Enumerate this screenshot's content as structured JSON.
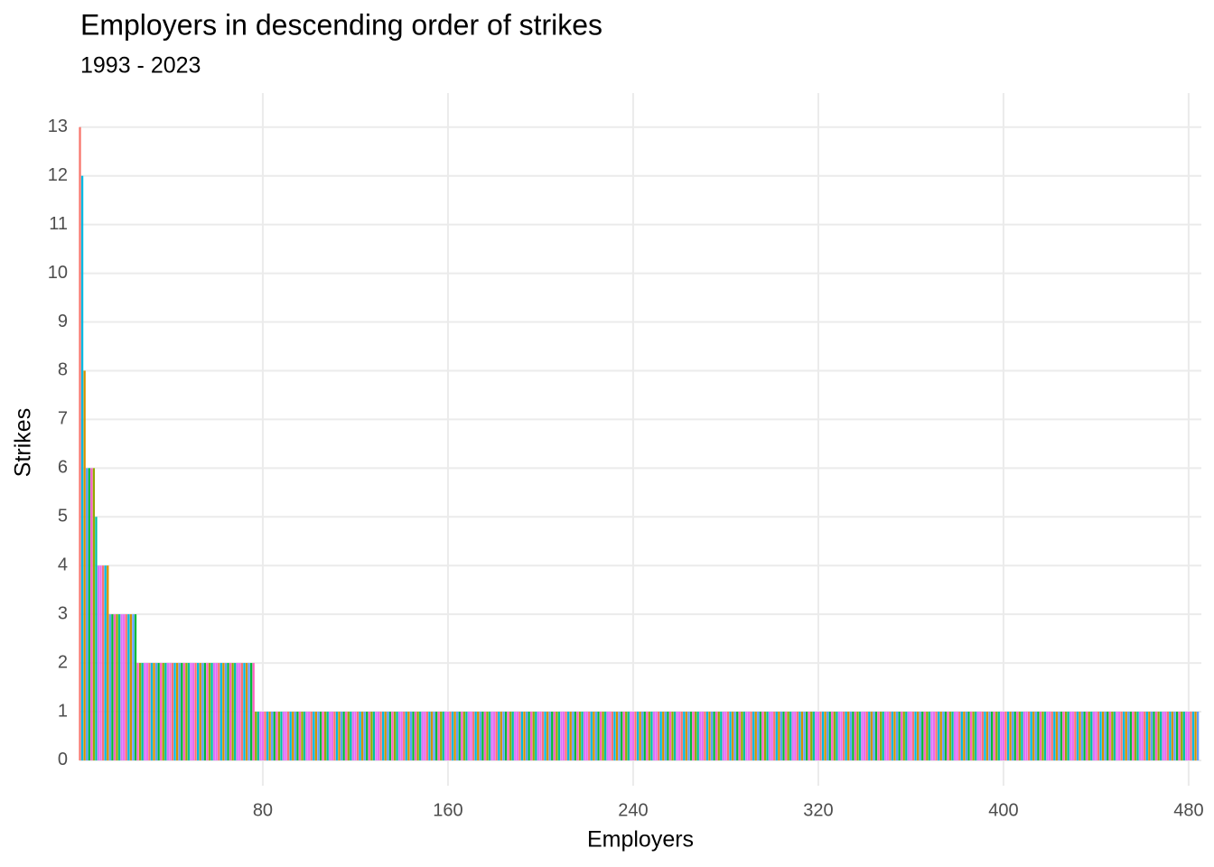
{
  "chart_data": {
    "type": "bar",
    "title": "Employers in descending order of strikes",
    "subtitle": "1993 - 2023",
    "x_label": "Employers",
    "y_label": "Strikes",
    "x": [
      1,
      2,
      3,
      4,
      5,
      6,
      7,
      8,
      9,
      10,
      11,
      12,
      13,
      14,
      15,
      16,
      17,
      18,
      19,
      20,
      21,
      22,
      23,
      24,
      25,
      26,
      27,
      28,
      29,
      30,
      31,
      32,
      33,
      34,
      35,
      36,
      37,
      38,
      39,
      40,
      41,
      42,
      43,
      44,
      45,
      46,
      47,
      48,
      49,
      50,
      51,
      52,
      53,
      54,
      55,
      56,
      57,
      58,
      59,
      60,
      61,
      62,
      63,
      64,
      65,
      66,
      67,
      68,
      69,
      70,
      71,
      72,
      73,
      74,
      75,
      76,
      77,
      78,
      79,
      80,
      81,
      82,
      83,
      84,
      85,
      86,
      87,
      88,
      89,
      90,
      91,
      92,
      93,
      94,
      95,
      96,
      97,
      98,
      99,
      100,
      101,
      102,
      103,
      104,
      105,
      106,
      107,
      108,
      109,
      110,
      111,
      112,
      113,
      114,
      115,
      116,
      117,
      118,
      119,
      120,
      121,
      122,
      123,
      124,
      125,
      126,
      127,
      128,
      129,
      130,
      131,
      132,
      133,
      134,
      135,
      136,
      137,
      138,
      139,
      140,
      141,
      142,
      143,
      144,
      145,
      146,
      147,
      148,
      149,
      150,
      151,
      152,
      153,
      154,
      155,
      156,
      157,
      158,
      159,
      160,
      161,
      162,
      163,
      164,
      165,
      166,
      167,
      168,
      169,
      170,
      171,
      172,
      173,
      174,
      175,
      176,
      177,
      178,
      179,
      180,
      181,
      182,
      183,
      184,
      185,
      186,
      187,
      188,
      189,
      190,
      191,
      192,
      193,
      194,
      195,
      196,
      197,
      198,
      199,
      200,
      201,
      202,
      203,
      204,
      205,
      206,
      207,
      208,
      209,
      210,
      211,
      212,
      213,
      214,
      215,
      216,
      217,
      218,
      219,
      220,
      221,
      222,
      223,
      224,
      225,
      226,
      227,
      228,
      229,
      230,
      231,
      232,
      233,
      234,
      235,
      236,
      237,
      238,
      239,
      240,
      241,
      242,
      243,
      244,
      245,
      246,
      247,
      248,
      249,
      250,
      251,
      252,
      253,
      254,
      255,
      256,
      257,
      258,
      259,
      260,
      261,
      262,
      263,
      264,
      265,
      266,
      267,
      268,
      269,
      270,
      271,
      272,
      273,
      274,
      275,
      276,
      277,
      278,
      279,
      280,
      281,
      282,
      283,
      284,
      285,
      286,
      287,
      288,
      289,
      290,
      291,
      292,
      293,
      294,
      295,
      296,
      297,
      298,
      299,
      300,
      301,
      302,
      303,
      304,
      305,
      306,
      307,
      308,
      309,
      310,
      311,
      312,
      313,
      314,
      315,
      316,
      317,
      318,
      319,
      320,
      321,
      322,
      323,
      324,
      325,
      326,
      327,
      328,
      329,
      330,
      331,
      332,
      333,
      334,
      335,
      336,
      337,
      338,
      339,
      340,
      341,
      342,
      343,
      344,
      345,
      346,
      347,
      348,
      349,
      350,
      351,
      352,
      353,
      354,
      355,
      356,
      357,
      358,
      359,
      360,
      361,
      362,
      363,
      364,
      365,
      366,
      367,
      368,
      369,
      370,
      371,
      372,
      373,
      374,
      375,
      376,
      377,
      378,
      379,
      380,
      381,
      382,
      383,
      384,
      385,
      386,
      387,
      388,
      389,
      390,
      391,
      392,
      393,
      394,
      395,
      396,
      397,
      398,
      399,
      400,
      401,
      402,
      403,
      404,
      405,
      406,
      407,
      408,
      409,
      410,
      411,
      412,
      413,
      414,
      415,
      416,
      417,
      418,
      419,
      420,
      421,
      422,
      423,
      424,
      425,
      426,
      427,
      428,
      429,
      430,
      431,
      432,
      433,
      434,
      435,
      436,
      437,
      438,
      439,
      440,
      441,
      442,
      443,
      444,
      445,
      446,
      447,
      448,
      449,
      450,
      451,
      452,
      453,
      454,
      455,
      456,
      457,
      458,
      459,
      460,
      461,
      462,
      463,
      464,
      465,
      466,
      467,
      468,
      469,
      470,
      471,
      472,
      473,
      474,
      475,
      476,
      477,
      478,
      479,
      480,
      481,
      482,
      483,
      484
    ],
    "values": [
      13,
      12,
      8,
      6,
      6,
      6,
      6,
      5,
      4,
      4,
      4,
      4,
      4,
      3,
      3,
      3,
      3,
      3,
      3,
      3,
      3,
      3,
      3,
      3,
      3,
      2,
      2,
      2,
      2,
      2,
      2,
      2,
      2,
      2,
      2,
      2,
      2,
      2,
      2,
      2,
      2,
      2,
      2,
      2,
      2,
      2,
      2,
      2,
      2,
      2,
      2,
      2,
      2,
      2,
      2,
      2,
      2,
      2,
      2,
      2,
      2,
      2,
      2,
      2,
      2,
      2,
      2,
      2,
      2,
      2,
      2,
      2,
      2,
      2,
      2,
      2,
      1,
      1,
      1,
      1,
      1,
      1,
      1,
      1,
      1,
      1,
      1,
      1,
      1,
      1,
      1,
      1,
      1,
      1,
      1,
      1,
      1,
      1,
      1,
      1,
      1,
      1,
      1,
      1,
      1,
      1,
      1,
      1,
      1,
      1,
      1,
      1,
      1,
      1,
      1,
      1,
      1,
      1,
      1,
      1,
      1,
      1,
      1,
      1,
      1,
      1,
      1,
      1,
      1,
      1,
      1,
      1,
      1,
      1,
      1,
      1,
      1,
      1,
      1,
      1,
      1,
      1,
      1,
      1,
      1,
      1,
      1,
      1,
      1,
      1,
      1,
      1,
      1,
      1,
      1,
      1,
      1,
      1,
      1,
      1,
      1,
      1,
      1,
      1,
      1,
      1,
      1,
      1,
      1,
      1,
      1,
      1,
      1,
      1,
      1,
      1,
      1,
      1,
      1,
      1,
      1,
      1,
      1,
      1,
      1,
      1,
      1,
      1,
      1,
      1,
      1,
      1,
      1,
      1,
      1,
      1,
      1,
      1,
      1,
      1,
      1,
      1,
      1,
      1,
      1,
      1,
      1,
      1,
      1,
      1,
      1,
      1,
      1,
      1,
      1,
      1,
      1,
      1,
      1,
      1,
      1,
      1,
      1,
      1,
      1,
      1,
      1,
      1,
      1,
      1,
      1,
      1,
      1,
      1,
      1,
      1,
      1,
      1,
      1,
      1,
      1,
      1,
      1,
      1,
      1,
      1,
      1,
      1,
      1,
      1,
      1,
      1,
      1,
      1,
      1,
      1,
      1,
      1,
      1,
      1,
      1,
      1,
      1,
      1,
      1,
      1,
      1,
      1,
      1,
      1,
      1,
      1,
      1,
      1,
      1,
      1,
      1,
      1,
      1,
      1,
      1,
      1,
      1,
      1,
      1,
      1,
      1,
      1,
      1,
      1,
      1,
      1,
      1,
      1,
      1,
      1,
      1,
      1,
      1,
      1,
      1,
      1,
      1,
      1,
      1,
      1,
      1,
      1,
      1,
      1,
      1,
      1,
      1,
      1,
      1,
      1,
      1,
      1,
      1,
      1,
      1,
      1,
      1,
      1,
      1,
      1,
      1,
      1,
      1,
      1,
      1,
      1,
      1,
      1,
      1,
      1,
      1,
      1,
      1,
      1,
      1,
      1,
      1,
      1,
      1,
      1,
      1,
      1,
      1,
      1,
      1,
      1,
      1,
      1,
      1,
      1,
      1,
      1,
      1,
      1,
      1,
      1,
      1,
      1,
      1,
      1,
      1,
      1,
      1,
      1,
      1,
      1,
      1,
      1,
      1,
      1,
      1,
      1,
      1,
      1,
      1,
      1,
      1,
      1,
      1,
      1,
      1,
      1,
      1,
      1,
      1,
      1,
      1,
      1,
      1,
      1,
      1,
      1,
      1,
      1,
      1,
      1,
      1,
      1,
      1,
      1,
      1,
      1,
      1,
      1,
      1,
      1,
      1,
      1,
      1,
      1,
      1,
      1,
      1,
      1,
      1,
      1,
      1,
      1,
      1,
      1,
      1,
      1,
      1,
      1,
      1,
      1,
      1,
      1,
      1,
      1,
      1,
      1,
      1,
      1,
      1,
      1,
      1,
      1,
      1,
      1,
      1,
      1,
      1,
      1,
      1,
      1,
      1,
      1,
      1,
      1,
      1,
      1,
      1,
      1,
      1,
      1,
      1,
      1,
      1,
      1,
      1,
      1,
      1,
      1,
      1,
      1,
      1,
      1,
      1,
      1,
      1,
      1,
      1,
      1,
      1,
      1,
      1,
      1
    ],
    "palette": [
      "#F8766D",
      "#00B9E3",
      "#D39200",
      "#619CFF",
      "#00BA38",
      "#FF61C3",
      "#93AA00",
      "#00C19F",
      "#DB72FB",
      "#E76BF3"
    ],
    "xlim": [
      0.8,
      485.5
    ],
    "ylim": [
      -0.52,
      13.7
    ],
    "xticks": [
      80,
      160,
      240,
      320,
      400,
      480
    ],
    "yticks": [
      0,
      1,
      2,
      3,
      4,
      5,
      6,
      7,
      8,
      9,
      10,
      11,
      12,
      13
    ],
    "grid": true
  }
}
